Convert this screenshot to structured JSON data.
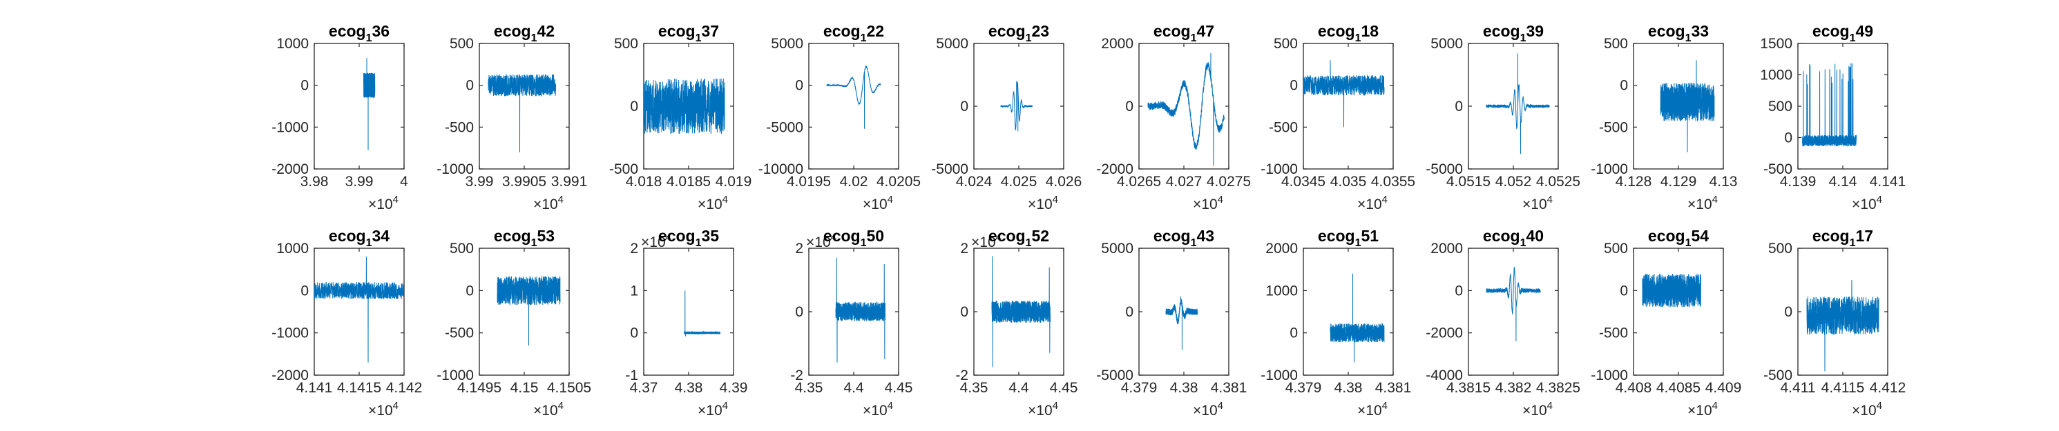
{
  "figure": {
    "background": "#ffffff",
    "line_color": "#0072bd",
    "axis_color": "#262626"
  },
  "chart_data": [
    {
      "type": "line",
      "title": {
        "base": "ecog",
        "sub": "1",
        "rest": "36"
      },
      "xlim": [
        39800,
        40000
      ],
      "xticks": [
        39800,
        39900,
        40000
      ],
      "xtick_labels": [
        "3.98",
        "3.99",
        "4"
      ],
      "x_exponent": "4",
      "ylim": [
        -2000,
        1000
      ],
      "yticks": [
        -2000,
        -1000,
        0,
        1000
      ],
      "ytick_labels": [
        "-2000",
        "-1000",
        "0",
        "1000"
      ],
      "signal": {
        "x_range": [
          39910,
          39935
        ],
        "center": 0,
        "amp": 300,
        "events": [
          [
            39920,
            -1550
          ],
          [
            39917,
            650
          ]
        ]
      }
    },
    {
      "type": "line",
      "title": {
        "base": "ecog",
        "sub": "1",
        "rest": "42"
      },
      "xlim": [
        39900,
        39910
      ],
      "xticks": [
        39900,
        39905,
        39910
      ],
      "xtick_labels": [
        "3.99",
        "3.9905",
        "3.991"
      ],
      "x_exponent": "4",
      "ylim": [
        -1000,
        500
      ],
      "yticks": [
        -1000,
        -500,
        0,
        500
      ],
      "ytick_labels": [
        "-1000",
        "-500",
        "0",
        "500"
      ],
      "signal": {
        "x_range": [
          39901,
          39908.5
        ],
        "center": 0,
        "amp": 130,
        "events": [
          [
            39904.5,
            -800
          ]
        ]
      }
    },
    {
      "type": "line",
      "title": {
        "base": "ecog",
        "sub": "1",
        "rest": "37"
      },
      "xlim": [
        40180,
        40190
      ],
      "xticks": [
        40180,
        40185,
        40190
      ],
      "xtick_labels": [
        "4.018",
        "4.0185",
        "4.019"
      ],
      "x_exponent": "4",
      "ylim": [
        -500,
        500
      ],
      "yticks": [
        -500,
        0,
        500
      ],
      "ytick_labels": [
        "-500",
        "0",
        "500"
      ],
      "signal": {
        "x_range": [
          40180,
          40189
        ],
        "center": 0,
        "amp": 220,
        "events": []
      }
    },
    {
      "type": "line",
      "title": {
        "base": "ecog",
        "sub": "1",
        "rest": "22"
      },
      "xlim": [
        40195,
        40205
      ],
      "xticks": [
        40195,
        40200,
        40205
      ],
      "xtick_labels": [
        "4.0195",
        "4.02",
        "4.0205"
      ],
      "x_exponent": "4",
      "ylim": [
        -10000,
        5000
      ],
      "yticks": [
        -10000,
        -5000,
        0,
        5000
      ],
      "ytick_labels": [
        "-10000",
        "-5000",
        "0",
        "5000"
      ],
      "signal": {
        "x_range": [
          40197,
          40203
        ],
        "center": 0,
        "amp": 80,
        "osc": [
          40201,
          2500,
          1.2,
          1.4
        ],
        "events": [
          [
            40201.2,
            -5200
          ]
        ]
      }
    },
    {
      "type": "line",
      "title": {
        "base": "ecog",
        "sub": "1",
        "rest": "23"
      },
      "xlim": [
        40240,
        40260
      ],
      "xticks": [
        40240,
        40250,
        40260
      ],
      "xtick_labels": [
        "4.024",
        "4.025",
        "4.026"
      ],
      "x_exponent": "4",
      "ylim": [
        -5000,
        5000
      ],
      "yticks": [
        -5000,
        0,
        5000
      ],
      "ytick_labels": [
        "-5000",
        "0",
        "5000"
      ],
      "signal": {
        "x_range": [
          40246,
          40253
        ],
        "center": 0,
        "amp": 60,
        "osc": [
          40249.5,
          2000,
          0.9,
          2
        ],
        "events": [
          [
            40249.5,
            2000
          ],
          [
            40249.8,
            -2000
          ]
        ]
      }
    },
    {
      "type": "line",
      "title": {
        "base": "ecog",
        "sub": "1",
        "rest": "47"
      },
      "xlim": [
        40265,
        40275
      ],
      "xticks": [
        40265,
        40270,
        40275
      ],
      "xtick_labels": [
        "4.0265",
        "4.027",
        "4.0275"
      ],
      "x_exponent": "4",
      "ylim": [
        -2000,
        2000
      ],
      "yticks": [
        -2000,
        0,
        2000
      ],
      "ytick_labels": [
        "-2000",
        "0",
        "2000"
      ],
      "signal": {
        "x_range": [
          40266,
          40274.5
        ],
        "center": 0,
        "amp": 120,
        "osc": [
          40272,
          1400,
          2.5,
          1.8
        ],
        "events": [
          [
            40273,
            1700
          ],
          [
            40273.3,
            -1900
          ]
        ]
      }
    },
    {
      "type": "line",
      "title": {
        "base": "ecog",
        "sub": "1",
        "rest": "18"
      },
      "xlim": [
        40345,
        40355
      ],
      "xticks": [
        40345,
        40350,
        40355
      ],
      "xtick_labels": [
        "4.0345",
        "4.035",
        "4.0355"
      ],
      "x_exponent": "4",
      "ylim": [
        -1000,
        500
      ],
      "yticks": [
        -1000,
        -500,
        0,
        500
      ],
      "ytick_labels": [
        "-1000",
        "-500",
        "0",
        "500"
      ],
      "signal": {
        "x_range": [
          40345,
          40354
        ],
        "center": 0,
        "amp": 120,
        "events": [
          [
            40349.5,
            -500
          ],
          [
            40348,
            300
          ]
        ]
      }
    },
    {
      "type": "line",
      "title": {
        "base": "ecog",
        "sub": "1",
        "rest": "39"
      },
      "xlim": [
        40515,
        40525
      ],
      "xticks": [
        40515,
        40520,
        40525
      ],
      "xtick_labels": [
        "4.0515",
        "4.052",
        "4.0525"
      ],
      "x_exponent": "4",
      "ylim": [
        -5000,
        5000
      ],
      "yticks": [
        -5000,
        0,
        5000
      ],
      "ytick_labels": [
        "-5000",
        "0",
        "5000"
      ],
      "signal": {
        "x_range": [
          40517,
          40524
        ],
        "center": 0,
        "amp": 120,
        "osc": [
          40520.5,
          1800,
          0.6,
          2.5
        ],
        "events": [
          [
            40520.5,
            4200
          ],
          [
            40520.8,
            -3800
          ]
        ]
      }
    },
    {
      "type": "line",
      "title": {
        "base": "ecog",
        "sub": "1",
        "rest": "33"
      },
      "xlim": [
        41280,
        41300
      ],
      "xticks": [
        41280,
        41290,
        41300
      ],
      "xtick_labels": [
        "4.128",
        "4.129",
        "4.13"
      ],
      "x_exponent": "4",
      "ylim": [
        -1000,
        500
      ],
      "yticks": [
        -1000,
        -500,
        0,
        500
      ],
      "ytick_labels": [
        "-1000",
        "-500",
        "0",
        "500"
      ],
      "signal": {
        "x_range": [
          41286,
          41298
        ],
        "center": -200,
        "amp": 230,
        "events": [
          [
            41292,
            -800
          ],
          [
            41294,
            300
          ]
        ]
      }
    },
    {
      "type": "line",
      "title": {
        "base": "ecog",
        "sub": "1",
        "rest": "49"
      },
      "xlim": [
        41390,
        41410
      ],
      "xticks": [
        41390,
        41400,
        41410
      ],
      "xtick_labels": [
        "4.139",
        "4.14",
        "4.141"
      ],
      "x_exponent": "4",
      "ylim": [
        -500,
        1500
      ],
      "yticks": [
        -500,
        0,
        500,
        1000,
        1500
      ],
      "ytick_labels": [
        "-500",
        "0",
        "500",
        "1000",
        "1500"
      ],
      "signal": {
        "x_range": [
          41391,
          41403
        ],
        "center": -50,
        "amp": 90,
        "spikes": [
          1200,
          0.9
        ],
        "events": []
      }
    },
    {
      "type": "line",
      "title": {
        "base": "ecog",
        "sub": "1",
        "rest": "34"
      },
      "xlim": [
        41410,
        41420
      ],
      "xticks": [
        41410,
        41415,
        41420
      ],
      "xtick_labels": [
        "4.141",
        "4.1415",
        "4.142"
      ],
      "x_exponent": "4",
      "ylim": [
        -2000,
        1000
      ],
      "yticks": [
        -2000,
        -1000,
        0,
        1000
      ],
      "ytick_labels": [
        "-2000",
        "-1000",
        "0",
        "1000"
      ],
      "signal": {
        "x_range": [
          41410,
          41420
        ],
        "center": 0,
        "amp": 200,
        "events": [
          [
            41416,
            -1700
          ],
          [
            41415.8,
            800
          ]
        ]
      }
    },
    {
      "type": "line",
      "title": {
        "base": "ecog",
        "sub": "1",
        "rest": "53"
      },
      "xlim": [
        41495,
        41505
      ],
      "xticks": [
        41495,
        41500,
        41505
      ],
      "xtick_labels": [
        "4.1495",
        "4.15",
        "4.1505"
      ],
      "x_exponent": "4",
      "ylim": [
        -1000,
        500
      ],
      "yticks": [
        -1000,
        -500,
        0,
        500
      ],
      "ytick_labels": [
        "-1000",
        "-500",
        "0",
        "500"
      ],
      "signal": {
        "x_range": [
          41497,
          41504
        ],
        "center": 0,
        "amp": 170,
        "events": [
          [
            41500.5,
            -650
          ]
        ]
      }
    },
    {
      "type": "line",
      "title": {
        "base": "ecog",
        "sub": "1",
        "rest": "35"
      },
      "xlim": [
        43700,
        43900
      ],
      "xticks": [
        43700,
        43800,
        43900
      ],
      "xtick_labels": [
        "4.37",
        "4.38",
        "4.39"
      ],
      "x_exponent": "4",
      "y_exponent": "4",
      "ylim": [
        -10000,
        20000
      ],
      "yticks": [
        -10000,
        0,
        10000,
        20000
      ],
      "ytick_labels": [
        "-1",
        "0",
        "1",
        "2"
      ],
      "signal": {
        "x_range": [
          43790,
          43870
        ],
        "center": 0,
        "amp": 300,
        "events": [
          [
            43792,
            10000
          ],
          [
            43793,
            -800
          ]
        ]
      }
    },
    {
      "type": "line",
      "title": {
        "base": "ecog",
        "sub": "1",
        "rest": "50"
      },
      "xlim": [
        43500,
        44500
      ],
      "xticks": [
        43500,
        44000,
        44500
      ],
      "xtick_labels": [
        "4.35",
        "4.4",
        "4.45"
      ],
      "x_exponent": "4",
      "y_exponent": "4",
      "ylim": [
        -20000,
        20000
      ],
      "yticks": [
        -20000,
        0,
        20000
      ],
      "ytick_labels": [
        "-2",
        "0",
        "2"
      ],
      "signal": {
        "x_range": [
          43800,
          44350
        ],
        "center": 0,
        "amp": 3000,
        "events": [
          [
            43810,
            17000
          ],
          [
            43815,
            -16000
          ],
          [
            44340,
            15000
          ],
          [
            44345,
            -15000
          ]
        ]
      }
    },
    {
      "type": "line",
      "title": {
        "base": "ecog",
        "sub": "1",
        "rest": "52"
      },
      "xlim": [
        43500,
        44500
      ],
      "xticks": [
        43500,
        44000,
        44500
      ],
      "xtick_labels": [
        "4.35",
        "4.4",
        "4.45"
      ],
      "x_exponent": "4",
      "y_exponent": "4",
      "ylim": [
        -20000,
        20000
      ],
      "yticks": [
        -20000,
        0,
        20000
      ],
      "ytick_labels": [
        "-2",
        "0",
        "2"
      ],
      "signal": {
        "x_range": [
          43700,
          44350
        ],
        "center": 0,
        "amp": 3500,
        "events": [
          [
            43705,
            17500
          ],
          [
            43710,
            -17500
          ],
          [
            44340,
            14000
          ],
          [
            44345,
            -13000
          ]
        ]
      }
    },
    {
      "type": "line",
      "title": {
        "base": "ecog",
        "sub": "1",
        "rest": "43"
      },
      "xlim": [
        43790,
        43810
      ],
      "xticks": [
        43790,
        43800,
        43810
      ],
      "xtick_labels": [
        "4.379",
        "4.38",
        "4.381"
      ],
      "x_exponent": "4",
      "ylim": [
        -5000,
        5000
      ],
      "yticks": [
        -5000,
        0,
        5000
      ],
      "ytick_labels": [
        "-5000",
        "0",
        "5000"
      ],
      "signal": {
        "x_range": [
          43796,
          43803
        ],
        "center": 0,
        "amp": 250,
        "osc": [
          43799,
          900,
          1.2,
          1.5
        ],
        "events": [
          [
            43799.6,
            -3000
          ],
          [
            43799.3,
            1200
          ]
        ]
      }
    },
    {
      "type": "line",
      "title": {
        "base": "ecog",
        "sub": "1",
        "rest": "51"
      },
      "xlim": [
        43790,
        43810
      ],
      "xticks": [
        43790,
        43800,
        43810
      ],
      "xtick_labels": [
        "4.379",
        "4.38",
        "4.381"
      ],
      "x_exponent": "4",
      "ylim": [
        -1000,
        2000
      ],
      "yticks": [
        -1000,
        0,
        1000,
        2000
      ],
      "ytick_labels": [
        "-1000",
        "0",
        "1000",
        "2000"
      ],
      "signal": {
        "x_range": [
          43796,
          43808
        ],
        "center": 0,
        "amp": 220,
        "events": [
          [
            43801,
            1400
          ],
          [
            43801.3,
            -700
          ]
        ]
      }
    },
    {
      "type": "line",
      "title": {
        "base": "ecog",
        "sub": "1",
        "rest": "40"
      },
      "xlim": [
        43815,
        43825
      ],
      "xticks": [
        43815,
        43820,
        43825
      ],
      "xtick_labels": [
        "4.3815",
        "4.382",
        "4.3825"
      ],
      "x_exponent": "4",
      "ylim": [
        -4000,
        2000
      ],
      "yticks": [
        -4000,
        -2000,
        0,
        2000
      ],
      "ytick_labels": [
        "-4000",
        "-2000",
        "0",
        "2000"
      ],
      "signal": {
        "x_range": [
          43817,
          43823
        ],
        "center": 0,
        "amp": 100,
        "osc": [
          43820,
          1100,
          0.5,
          2.2
        ],
        "events": [
          [
            43820.3,
            -2400
          ]
        ]
      }
    },
    {
      "type": "line",
      "title": {
        "base": "ecog",
        "sub": "1",
        "rest": "54"
      },
      "xlim": [
        44080,
        44090
      ],
      "xticks": [
        44080,
        44085,
        44090
      ],
      "xtick_labels": [
        "4.408",
        "4.4085",
        "4.409"
      ],
      "x_exponent": "4",
      "ylim": [
        -1000,
        500
      ],
      "yticks": [
        -1000,
        -500,
        0,
        500
      ],
      "ytick_labels": [
        "-1000",
        "-500",
        "0",
        "500"
      ],
      "signal": {
        "x_range": [
          44081,
          44087.5
        ],
        "center": 0,
        "amp": 200,
        "events": []
      }
    },
    {
      "type": "line",
      "title": {
        "base": "ecog",
        "sub": "1",
        "rest": "17"
      },
      "xlim": [
        44110,
        44120
      ],
      "xticks": [
        44110,
        44115,
        44120
      ],
      "xtick_labels": [
        "4.411",
        "4.4115",
        "4.412"
      ],
      "x_exponent": "4",
      "ylim": [
        -500,
        500
      ],
      "yticks": [
        -500,
        0,
        500
      ],
      "ytick_labels": [
        "-500",
        "0",
        "500"
      ],
      "signal": {
        "x_range": [
          44111,
          44119
        ],
        "center": -30,
        "amp": 150,
        "events": [
          [
            44113,
            -470
          ],
          [
            44116,
            250
          ]
        ]
      }
    }
  ]
}
